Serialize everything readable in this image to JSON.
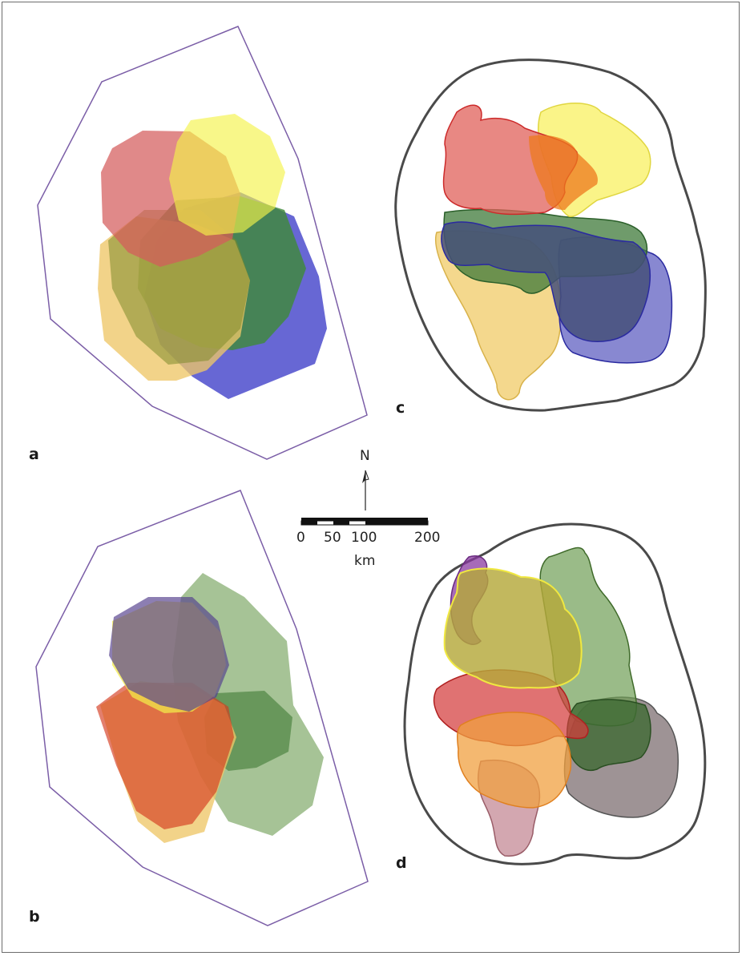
{
  "figure": {
    "panels": [
      {
        "id": "a",
        "label": "a"
      },
      {
        "id": "b",
        "label": "b"
      },
      {
        "id": "c",
        "label": "c"
      },
      {
        "id": "d",
        "label": "d"
      }
    ],
    "north_arrow": {
      "label": "N"
    },
    "scale_bar": {
      "ticks": [
        "0",
        "50",
        "100",
        "200"
      ],
      "unit": "km"
    },
    "colors": {
      "boundary_convex": "#7b5ea7",
      "boundary_outline": "#4a4a4a",
      "red": "#d45b5b",
      "yellow": "#f5f24a",
      "orange": "#ee7a1e",
      "green": "#3f8a3a",
      "blue": "#3a3ac6",
      "tan": "#eec768",
      "purple": "#5a4f8a",
      "sage": "#6f9e55",
      "mauve": "#c48a95",
      "gray": "#7d6f72"
    }
  }
}
